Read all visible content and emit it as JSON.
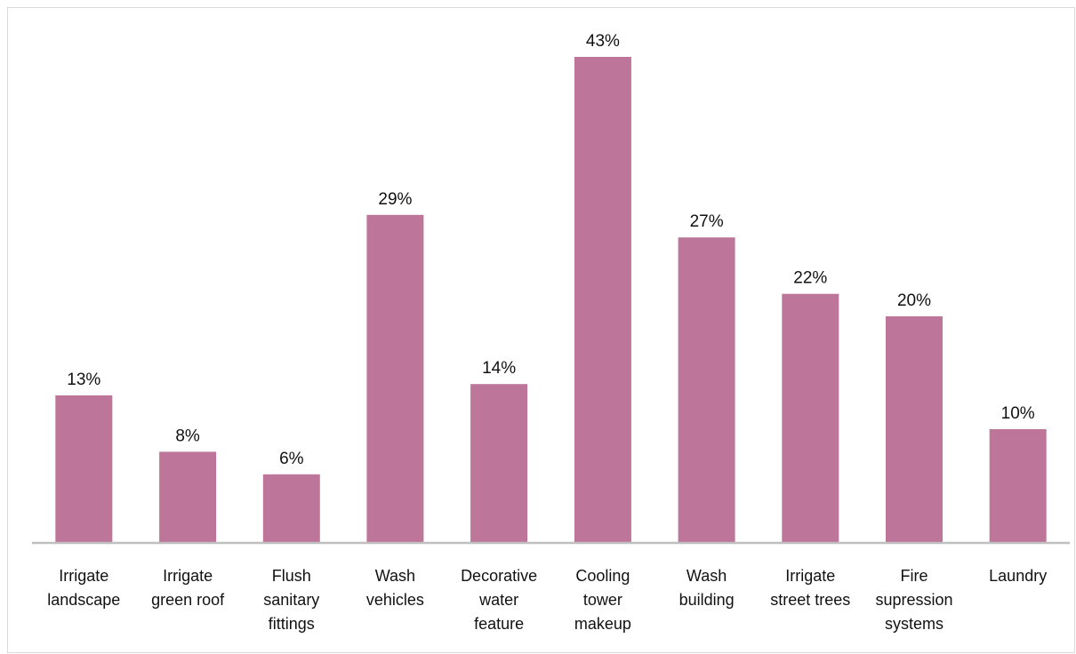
{
  "chart_data": {
    "type": "bar",
    "categories": [
      [
        "Irrigate",
        "landscape"
      ],
      [
        "Irrigate",
        "green roof"
      ],
      [
        "Flush",
        "sanitary",
        "fittings"
      ],
      [
        "Wash",
        "vehicles"
      ],
      [
        "Decorative",
        "water",
        "feature"
      ],
      [
        "Cooling",
        "tower",
        "makeup"
      ],
      [
        "Wash",
        "building"
      ],
      [
        "Irrigate",
        "street trees"
      ],
      [
        "Fire",
        "supression",
        "systems"
      ],
      [
        "Laundry"
      ]
    ],
    "values": [
      13,
      8,
      6,
      29,
      14,
      43,
      27,
      22,
      20,
      10
    ],
    "value_labels": [
      "13%",
      "8%",
      "6%",
      "29%",
      "14%",
      "43%",
      "27%",
      "22%",
      "20%",
      "10%"
    ],
    "ylim": [
      0,
      43
    ],
    "grid": false,
    "legend": "none"
  },
  "colors": {
    "bar": "#bd7699",
    "axis": "#bfbfbf",
    "text": "#111111"
  }
}
